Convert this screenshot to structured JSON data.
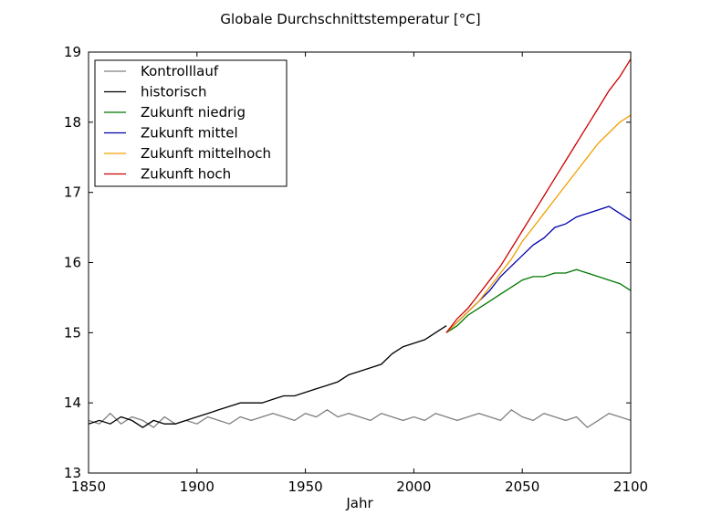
{
  "chart_data": {
    "type": "line",
    "title": "Globale Durchschnittstemperatur [°C]",
    "xlabel": "Jahr",
    "ylabel": "",
    "xlim": [
      1850,
      2100
    ],
    "ylim": [
      13,
      19
    ],
    "xticks": [
      "1850",
      "1900",
      "1950",
      "2000",
      "2050",
      "2100"
    ],
    "yticks": [
      "13",
      "14",
      "15",
      "16",
      "17",
      "18",
      "19"
    ],
    "grid": false,
    "legend_position": "top-left",
    "series": [
      {
        "name": "Kontrolllauf",
        "color": "#808080",
        "x_start": 1850,
        "x_step": 5,
        "values": [
          13.75,
          13.7,
          13.85,
          13.7,
          13.8,
          13.75,
          13.65,
          13.8,
          13.7,
          13.75,
          13.7,
          13.8,
          13.75,
          13.7,
          13.8,
          13.75,
          13.8,
          13.85,
          13.8,
          13.75,
          13.85,
          13.8,
          13.9,
          13.8,
          13.85,
          13.8,
          13.75,
          13.85,
          13.8,
          13.75,
          13.8,
          13.75,
          13.85,
          13.8,
          13.75,
          13.8,
          13.85,
          13.8,
          13.75,
          13.9,
          13.8,
          13.75,
          13.85,
          13.8,
          13.75,
          13.8,
          13.65,
          13.75,
          13.85,
          13.8,
          13.75
        ]
      },
      {
        "name": "historisch",
        "color": "#000000",
        "x_start": 1850,
        "x_step": 5,
        "values": [
          13.7,
          13.75,
          13.7,
          13.8,
          13.75,
          13.65,
          13.75,
          13.7,
          13.7,
          13.75,
          13.8,
          13.85,
          13.9,
          13.95,
          14.0,
          14.0,
          14.0,
          14.05,
          14.1,
          14.1,
          14.15,
          14.2,
          14.25,
          14.3,
          14.4,
          14.45,
          14.5,
          14.55,
          14.7,
          14.8,
          14.85,
          14.9,
          15.0,
          15.1
        ]
      },
      {
        "name": "Zukunft niedrig",
        "color": "#007700",
        "x_start": 2015,
        "x_step": 5,
        "values": [
          15.0,
          15.1,
          15.25,
          15.35,
          15.45,
          15.55,
          15.65,
          15.75,
          15.8,
          15.8,
          15.85,
          15.85,
          15.9,
          15.85,
          15.8,
          15.75,
          15.7,
          15.6
        ]
      },
      {
        "name": "Zukunft mittel",
        "color": "#0000aa",
        "x_start": 2015,
        "x_step": 5,
        "values": [
          15.0,
          15.15,
          15.3,
          15.45,
          15.6,
          15.8,
          15.95,
          16.1,
          16.25,
          16.35,
          16.5,
          16.55,
          16.65,
          16.7,
          16.75,
          16.8,
          16.7,
          16.6
        ]
      },
      {
        "name": "Zukunft mittelhoch",
        "color": "#f0a000",
        "x_start": 2015,
        "x_step": 5,
        "values": [
          15.0,
          15.15,
          15.3,
          15.45,
          15.65,
          15.85,
          16.05,
          16.3,
          16.5,
          16.7,
          16.9,
          17.1,
          17.3,
          17.5,
          17.7,
          17.85,
          18.0,
          18.1
        ]
      },
      {
        "name": "Zukunft hoch",
        "color": "#cc0000",
        "x_start": 2015,
        "x_step": 5,
        "values": [
          15.0,
          15.2,
          15.35,
          15.55,
          15.75,
          15.95,
          16.2,
          16.45,
          16.7,
          16.95,
          17.2,
          17.45,
          17.7,
          17.95,
          18.2,
          18.45,
          18.65,
          18.9
        ]
      }
    ]
  }
}
